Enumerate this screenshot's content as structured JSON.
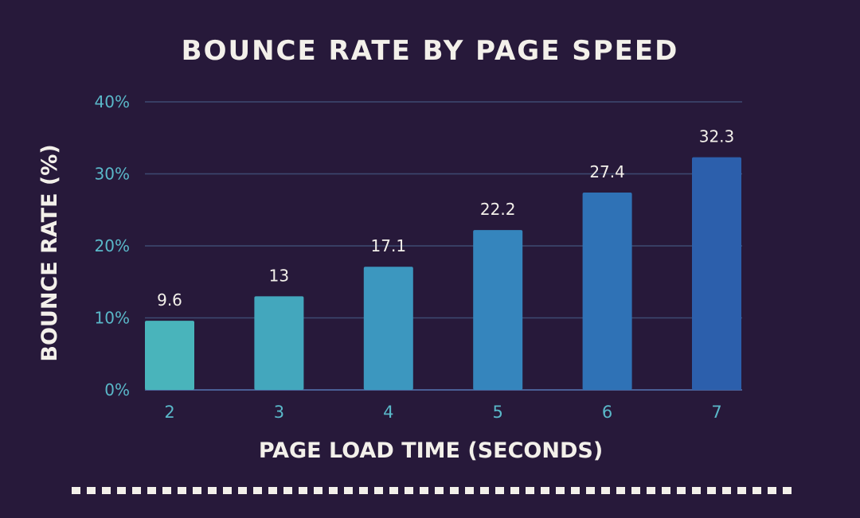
{
  "chart_data": {
    "type": "bar",
    "title": "BOUNCE RATE BY PAGE SPEED",
    "xlabel": "PAGE LOAD TIME (SECONDS)",
    "ylabel": "BOUNCE RATE (%)",
    "categories": [
      "2",
      "3",
      "4",
      "5",
      "6",
      "7"
    ],
    "values": [
      9.6,
      13,
      17.1,
      22.2,
      27.4,
      32.3
    ],
    "value_labels": [
      "9.6",
      "13",
      "17.1",
      "22.2",
      "27.4",
      "32.3"
    ],
    "ylim": [
      0,
      40
    ],
    "y_ticks": [
      0,
      10,
      20,
      30,
      40
    ],
    "y_tick_labels": [
      "0%",
      "10%",
      "20%",
      "30%",
      "40%"
    ],
    "grid": true,
    "legend": "none",
    "bar_colors": [
      "#49b4bb",
      "#43a7bd",
      "#3c97bf",
      "#3585bd",
      "#2f72b6",
      "#2c5fac"
    ]
  },
  "colors": {
    "background": "#27193a",
    "title_text": "#f3f0ea",
    "tick_text": "#5ab8c9",
    "gridline": "#3e4a72"
  }
}
